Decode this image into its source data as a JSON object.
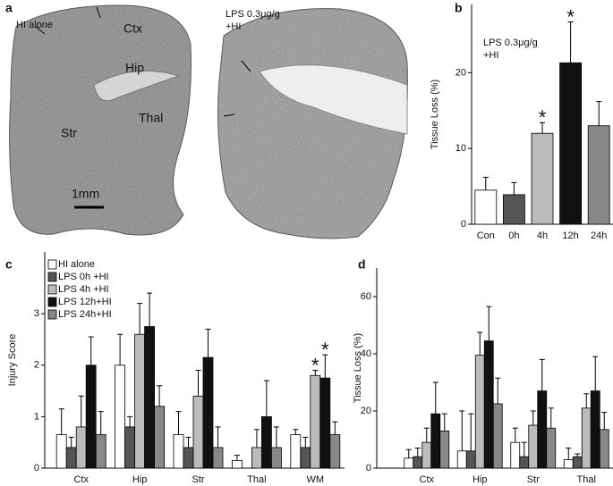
{
  "panel_a": {
    "label": "a",
    "left_labels": [
      "HI alone",
      "Ctx",
      "Hip",
      "Str",
      "Thal",
      "1mm"
    ],
    "right_labels": [
      "LPS 0.3μg/g",
      "+HI"
    ]
  },
  "chart_data": [
    {
      "type": "bar",
      "panel": "b",
      "ylabel": "Tissue Loss (%)",
      "annotation": [
        "LPS 0.3μg/g",
        "+HI"
      ],
      "categories": [
        "Con",
        "0h",
        "4h",
        "12h",
        "24h"
      ],
      "values": [
        4.5,
        3.9,
        12,
        21.3,
        13
      ],
      "errors": [
        1.7,
        1.6,
        1.4,
        5.4,
        3.2
      ],
      "colors": [
        "#ffffff",
        "#555555",
        "#bbbbbb",
        "#111111",
        "#888888"
      ],
      "ylim": [
        0,
        29
      ],
      "yticks": [
        0,
        10,
        20
      ],
      "stars": [
        {
          "text": "*",
          "category": "4h"
        },
        {
          "text": "*",
          "category": "12h"
        }
      ]
    },
    {
      "type": "bar",
      "panel": "c",
      "ylabel": "Injury Score",
      "categories": [
        "Ctx",
        "Hip",
        "Str",
        "Thal",
        "WM"
      ],
      "series": [
        {
          "name": "HI alone",
          "color": "#ffffff",
          "values": [
            0.65,
            2.0,
            0.65,
            0.15,
            0.65
          ],
          "errors": [
            0.5,
            0.6,
            0.45,
            0.1,
            0.1
          ]
        },
        {
          "name": "LPS 0h  +HI",
          "color": "#555555",
          "values": [
            0.4,
            0.8,
            0.4,
            0,
            0.4
          ],
          "errors": [
            0.2,
            0.2,
            0.2,
            0,
            0.2
          ]
        },
        {
          "name": "LPS 4h  +HI",
          "color": "#bbbbbb",
          "values": [
            0.8,
            2.6,
            1.4,
            0.4,
            1.8
          ],
          "errors": [
            0.6,
            0.6,
            0.5,
            0.35,
            0.1
          ]
        },
        {
          "name": "LPS 12h+HI",
          "color": "#111111",
          "values": [
            2.0,
            2.75,
            2.15,
            1.0,
            1.75
          ],
          "errors": [
            0.55,
            0.65,
            0.55,
            0.7,
            0.45
          ]
        },
        {
          "name": "LPS 24h+HI",
          "color": "#888888",
          "values": [
            0.65,
            1.2,
            0.4,
            0.4,
            0.65
          ],
          "errors": [
            0.45,
            0.4,
            0.4,
            0.4,
            0.25
          ]
        }
      ],
      "ylim": [
        0,
        4.2
      ],
      "yticks": [
        0,
        1,
        2,
        3
      ],
      "stars": [
        {
          "text": "*",
          "category": "WM",
          "series": "LPS 4h  +HI"
        },
        {
          "text": "*",
          "category": "WM",
          "series": "LPS 12h+HI"
        }
      ]
    },
    {
      "type": "bar",
      "panel": "d",
      "ylabel": "Tissue Loss (%)",
      "categories": [
        "Ctx",
        "Hip",
        "Str",
        "Thal"
      ],
      "series": [
        {
          "color": "#ffffff",
          "values": [
            3.5,
            6,
            9,
            3
          ],
          "errors": [
            3,
            14,
            5,
            4
          ]
        },
        {
          "color": "#555555",
          "values": [
            4,
            6,
            4,
            4
          ],
          "errors": [
            3,
            13,
            5,
            1
          ]
        },
        {
          "color": "#bbbbbb",
          "values": [
            9,
            39.5,
            15,
            21
          ],
          "errors": [
            5,
            8,
            5,
            5
          ]
        },
        {
          "color": "#111111",
          "values": [
            19,
            44.5,
            27,
            27
          ],
          "errors": [
            11,
            12,
            11,
            12
          ]
        },
        {
          "color": "#888888",
          "values": [
            13,
            22.5,
            14,
            13.5
          ],
          "errors": [
            6,
            9,
            7,
            6
          ]
        }
      ],
      "ylim": [
        0,
        70
      ],
      "yticks": [
        0,
        20,
        40,
        60
      ]
    }
  ]
}
